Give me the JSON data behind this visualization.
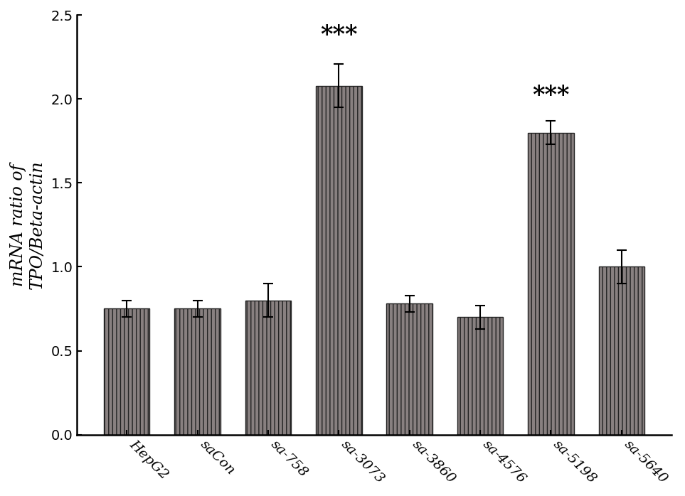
{
  "categories": [
    "HepG2",
    "saCon",
    "sa-758",
    "sa-3073",
    "sa-3860",
    "sa-4576",
    "sa-5198",
    "sa-5640"
  ],
  "values": [
    0.75,
    0.75,
    0.8,
    2.08,
    0.78,
    0.7,
    1.8,
    1.0
  ],
  "errors": [
    0.05,
    0.05,
    0.1,
    0.13,
    0.05,
    0.07,
    0.07,
    0.1
  ],
  "bar_color": "#888080",
  "bar_edgecolor": "#222222",
  "hatch": "|||",
  "ylabel": "mRNA ratio of\nTPO/Beta-actin",
  "ylim": [
    0,
    2.5
  ],
  "yticks": [
    0,
    0.5,
    1.0,
    1.5,
    2.0,
    2.5
  ],
  "significance": {
    "sa-3073": "***",
    "sa-5198": "***"
  },
  "sig_fontsize": 24,
  "ylabel_fontsize": 17,
  "tick_fontsize": 14,
  "xlabel_rotation": -45,
  "background_color": "#ffffff",
  "bar_width": 0.65,
  "sig_offsets": {
    "sa-3073": 0.1,
    "sa-5198": 0.08
  }
}
